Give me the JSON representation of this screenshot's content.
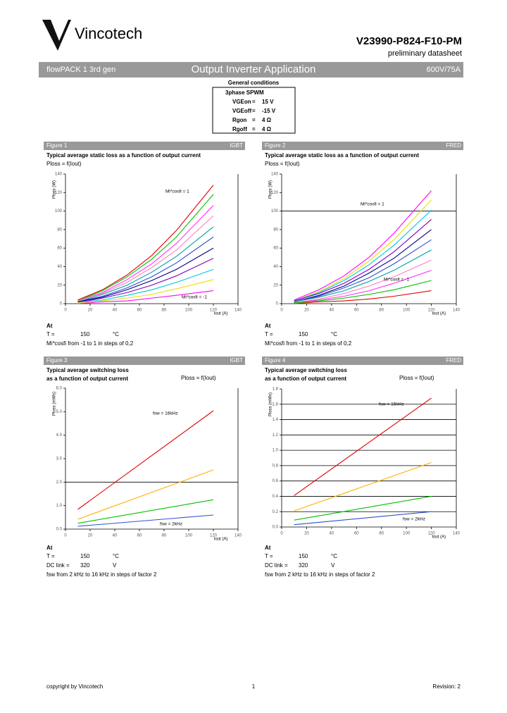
{
  "header": {
    "brand": "Vincotech",
    "part": "V23990-P824-F10-PM",
    "doc": "preliminary datasheet",
    "product": "flowPACK 1 3rd gen",
    "section": "Output Inverter Application",
    "rating": "600V/75A"
  },
  "conditions": {
    "title": "General conditions",
    "mode": "3phase SPWM",
    "rows": [
      [
        "VGEon",
        "=",
        "15 V"
      ],
      [
        "VGEoff",
        "=",
        "-15 V"
      ],
      [
        "Rgon",
        "=",
        "4 Ω"
      ],
      [
        "Rgoff",
        "=",
        "4 Ω"
      ]
    ]
  },
  "chart_data": [
    {
      "type": "line",
      "figure": "Figure 1",
      "device": "IGBT",
      "title": [
        "Typical average static loss as a function of output current"
      ],
      "formula": "Ploss = f(Iout)",
      "ylabel": "Ploss (W)",
      "xlabel": "Iout (A)",
      "x": [
        10,
        30,
        50,
        70,
        90,
        120
      ],
      "xlim": [
        0,
        140
      ],
      "xticks": [
        0,
        20,
        40,
        60,
        80,
        100,
        120,
        140
      ],
      "ylim": [
        0,
        140
      ],
      "yticks": [
        0,
        20,
        40,
        60,
        80,
        100,
        120,
        140
      ],
      "grid_at": [],
      "series": [
        {
          "color": "#e00000",
          "values": [
            4,
            15,
            31,
            52,
            79,
            128
          ]
        },
        {
          "color": "#00c000",
          "values": [
            3,
            14,
            29,
            48,
            72,
            118
          ]
        },
        {
          "color": "#ff33ff",
          "values": [
            3,
            12,
            26,
            43,
            65,
            106
          ]
        },
        {
          "color": "#ff80c0",
          "values": [
            3,
            11,
            23,
            39,
            58,
            95
          ]
        },
        {
          "color": "#00a0a0",
          "values": [
            2,
            10,
            20,
            34,
            51,
            83
          ]
        },
        {
          "color": "#3050d0",
          "values": [
            2,
            8,
            17,
            29,
            44,
            72
          ]
        },
        {
          "color": "#000080",
          "values": [
            2,
            7,
            15,
            25,
            37,
            60
          ]
        },
        {
          "color": "#8000c0",
          "values": [
            1,
            6,
            12,
            20,
            30,
            49
          ]
        },
        {
          "color": "#00c8e0",
          "values": [
            1,
            4,
            9,
            15,
            23,
            37
          ]
        },
        {
          "color": "#e8e000",
          "values": [
            1,
            3,
            6,
            10,
            16,
            26
          ]
        },
        {
          "color": "#ff00ff",
          "values": [
            0,
            2,
            3,
            6,
            9,
            14
          ]
        }
      ],
      "annotations": [
        "Mi*cosfi = 1",
        "Mi*cosfi = -1"
      ],
      "notes": [
        [
          "At"
        ],
        [
          "T =",
          "150",
          "°C"
        ],
        [
          "Mi*cosfi from -1 to 1 in steps of 0,2"
        ]
      ]
    },
    {
      "type": "line",
      "figure": "Figure 2",
      "device": "FRED",
      "title": [
        "Typical average static loss as a function of output current"
      ],
      "formula": "Ploss = f(Iout)",
      "ylabel": "Ploss (W)",
      "xlabel": "Iout (A)",
      "x": [
        10,
        30,
        50,
        70,
        90,
        120
      ],
      "xlim": [
        0,
        140
      ],
      "xticks": [
        0,
        20,
        40,
        60,
        80,
        100,
        120,
        140
      ],
      "ylim": [
        0,
        140
      ],
      "yticks": [
        0,
        20,
        40,
        60,
        80,
        100,
        120,
        140
      ],
      "grid_at": [
        100
      ],
      "series": [
        {
          "color": "#ff00ff",
          "values": [
            4,
            15,
            30,
            50,
            76,
            122
          ]
        },
        {
          "color": "#e8e000",
          "values": [
            3,
            13,
            27,
            46,
            69,
            112
          ]
        },
        {
          "color": "#00c8e0",
          "values": [
            3,
            12,
            25,
            42,
            63,
            101
          ]
        },
        {
          "color": "#8000c0",
          "values": [
            3,
            11,
            22,
            37,
            56,
            91
          ]
        },
        {
          "color": "#000080",
          "values": [
            2,
            9,
            19,
            33,
            49,
            80
          ]
        },
        {
          "color": "#3050d0",
          "values": [
            2,
            8,
            17,
            28,
            43,
            69
          ]
        },
        {
          "color": "#00a0a0",
          "values": [
            2,
            7,
            14,
            24,
            36,
            58
          ]
        },
        {
          "color": "#ff80c0",
          "values": [
            1,
            5,
            11,
            19,
            29,
            47
          ]
        },
        {
          "color": "#ff33ff",
          "values": [
            1,
            4,
            8,
            14,
            22,
            36
          ]
        },
        {
          "color": "#00c000",
          "values": [
            1,
            3,
            6,
            10,
            15,
            25
          ]
        },
        {
          "color": "#e00000",
          "values": [
            0,
            2,
            3,
            5,
            8,
            14
          ]
        }
      ],
      "annotations": [
        "Mi*cosfi = 1",
        "Mi*cosfi = -1"
      ],
      "notes": [
        [
          "At"
        ],
        [
          "T =",
          "150",
          "°C"
        ],
        [
          "Mi*cosfi from -1 to 1 in steps of 0,2"
        ]
      ]
    },
    {
      "type": "line",
      "figure": "Figure 3",
      "device": "IGBT",
      "title": [
        "Typical average switching loss",
        "as a function of output current"
      ],
      "formula": "Ploss = f(Iout)",
      "ylabel": "Ploss (mWs)",
      "xlabel": "Iout (A)",
      "x": [
        10,
        120
      ],
      "xlim": [
        0,
        140
      ],
      "xticks": [
        0,
        20,
        40,
        60,
        80,
        100,
        120,
        140
      ],
      "ylim": [
        0,
        6
      ],
      "yticks": [
        {
          "value": 0,
          "label": "0.0"
        },
        {
          "value": 1,
          "label": "1.0"
        },
        {
          "value": 2,
          "label": "2.0"
        },
        {
          "value": 3,
          "label": "3.0"
        },
        {
          "value": 4,
          "label": "4.0"
        },
        {
          "value": 5,
          "label": "5.0"
        },
        {
          "value": 6,
          "label": "6.0"
        }
      ],
      "grid_at": [
        2
      ],
      "series": [
        {
          "color": "#e00000",
          "values": [
            0.84,
            5.04
          ]
        },
        {
          "color": "#ffb000",
          "values": [
            0.42,
            2.52
          ]
        },
        {
          "color": "#00c000",
          "values": [
            0.25,
            1.25
          ]
        },
        {
          "color": "#3050d0",
          "values": [
            0.12,
            0.6
          ]
        }
      ],
      "annotations": [
        "fsw = 16kHz",
        "fsw = 2kHz"
      ],
      "notes": [
        [
          "At"
        ],
        [
          "T =",
          "150",
          "°C"
        ],
        [
          "DC link =",
          "320",
          "V"
        ],
        [
          "fsw from 2 kHz to 16 kHz in steps of factor 2"
        ]
      ]
    },
    {
      "type": "line",
      "figure": "Figure 4",
      "device": "FRED",
      "title": [
        "Typical average switching loss",
        "as a function of output current"
      ],
      "formula": "Ploss = f(Iout)",
      "ylabel": "Ploss (mWs)",
      "xlabel": "Iout (A)",
      "x": [
        10,
        120
      ],
      "xlim": [
        0,
        140
      ],
      "xticks": [
        0,
        20,
        40,
        60,
        80,
        100,
        120,
        140
      ],
      "ylim": [
        0,
        1.8
      ],
      "yticks": [
        {
          "value": 0,
          "label": "0.0"
        },
        0.2,
        0.4,
        0.6,
        0.8,
        {
          "value": 1,
          "label": "1.0"
        },
        1.2,
        1.4,
        1.6,
        1.8
      ],
      "grid_at": [
        0.2,
        0.4,
        0.6,
        0.8,
        1,
        1.2,
        1.4,
        1.6
      ],
      "series": [
        {
          "color": "#e00000",
          "values": [
            0.41,
            1.68
          ]
        },
        {
          "color": "#ffb000",
          "values": [
            0.21,
            0.84
          ]
        },
        {
          "color": "#00c000",
          "values": [
            0.09,
            0.4
          ]
        },
        {
          "color": "#3050d0",
          "values": [
            0.03,
            0.2
          ]
        }
      ],
      "annotations": [
        "fsw = 16kHz",
        "fsw = 2kHz"
      ],
      "notes": [
        [
          "At"
        ],
        [
          "T =",
          "150",
          "°C"
        ],
        [
          "DC link =",
          "320",
          "V"
        ],
        [
          "fsw from 2 kHz to 16 kHz in steps of factor 2"
        ]
      ]
    }
  ],
  "footer": {
    "copyright": "copyright by Vincotech",
    "page": "1",
    "revision": "Revision: 2"
  }
}
